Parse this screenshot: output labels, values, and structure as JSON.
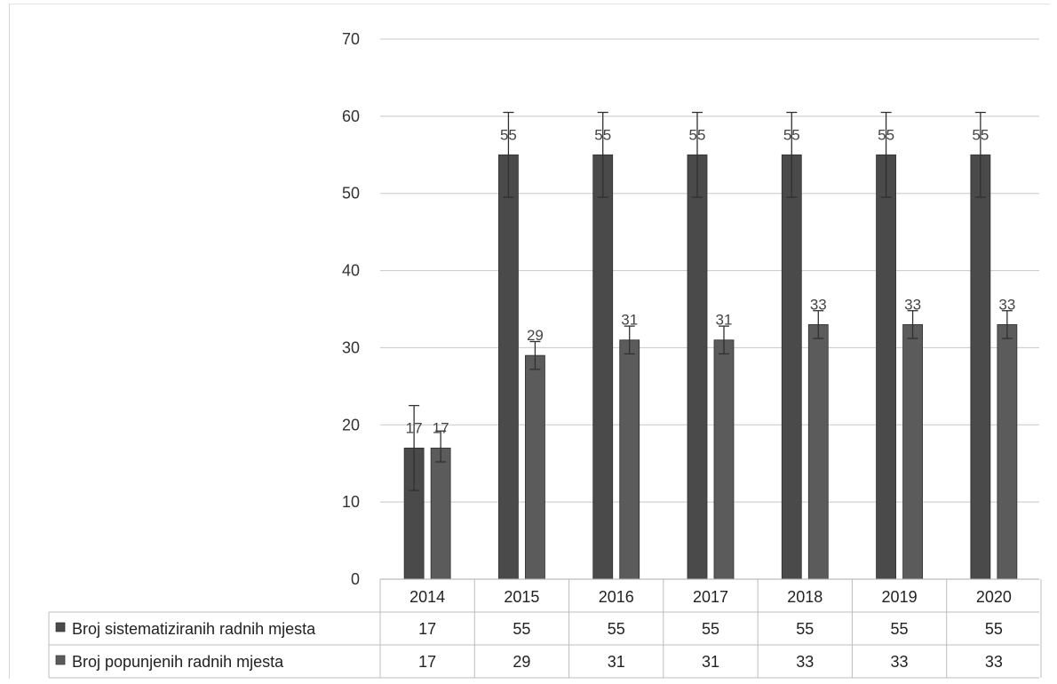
{
  "chart_data": {
    "type": "bar",
    "categories": [
      "2014",
      "2015",
      "2016",
      "2017",
      "2018",
      "2019",
      "2020"
    ],
    "ylim": [
      0,
      70
    ],
    "yticks": [
      0,
      10,
      20,
      30,
      40,
      50,
      60,
      70
    ],
    "grid": true,
    "legend_placement": "bottom-left data table",
    "series": [
      {
        "name": "Broj sistematiziranih radnih mjesta",
        "values": [
          17,
          55,
          55,
          55,
          55,
          55,
          55
        ],
        "color": "#4a4a4a",
        "error_plus": [
          5.5,
          5.5,
          5.5,
          5.5,
          5.5,
          5.5,
          5.5
        ],
        "error_minus": [
          5.5,
          5.5,
          5.5,
          5.5,
          5.5,
          5.5,
          5.5
        ]
      },
      {
        "name": "Broj popunjenih radnih mjesta",
        "values": [
          17,
          29,
          31,
          31,
          33,
          33,
          33
        ],
        "color": "#5b5b5b",
        "error_plus": [
          2.2,
          1.8,
          1.8,
          1.8,
          1.8,
          1.8,
          1.8
        ],
        "error_minus": [
          1.8,
          1.8,
          1.8,
          1.8,
          1.8,
          1.8,
          1.8
        ]
      }
    ]
  }
}
